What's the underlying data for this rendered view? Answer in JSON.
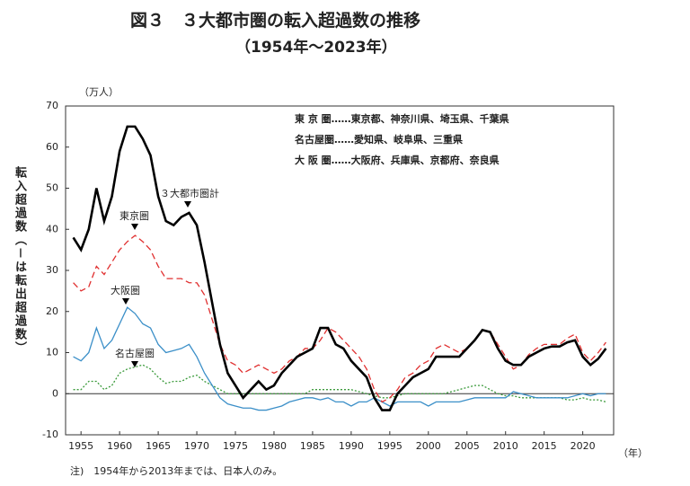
{
  "chart_data": {
    "type": "line",
    "title": "図３　３大都市圏の転入超過数の推移",
    "subtitle": "（1954年～2023年）",
    "y_unit": "（万人）",
    "y_label": "転入超過数（－は転出超過数）",
    "x_unit": "（年）",
    "note": "注)　1954年から2013年までは、日本人のみ。",
    "definitions": [
      "東 京 圏……東京都、神奈川県、埼玉県、千葉県",
      "名古屋圏……愛知県、岐阜県、三重県",
      "大 阪 圏……大阪府、兵庫県、京都府、奈良県"
    ],
    "x": [
      1954,
      1955,
      1956,
      1957,
      1958,
      1959,
      1960,
      1961,
      1962,
      1963,
      1964,
      1965,
      1966,
      1967,
      1968,
      1969,
      1970,
      1971,
      1972,
      1973,
      1974,
      1975,
      1976,
      1977,
      1978,
      1979,
      1980,
      1981,
      1982,
      1983,
      1984,
      1985,
      1986,
      1987,
      1988,
      1989,
      1990,
      1991,
      1992,
      1993,
      1994,
      1995,
      1996,
      1997,
      1998,
      1999,
      2000,
      2001,
      2002,
      2003,
      2004,
      2005,
      2006,
      2007,
      2008,
      2009,
      2010,
      2011,
      2012,
      2013,
      2014,
      2015,
      2016,
      2017,
      2018,
      2019,
      2020,
      2021,
      2022,
      2023
    ],
    "series": [
      {
        "name": "３大都市圏計",
        "color": "#000000",
        "dash": "solid",
        "width": 2.6,
        "values": [
          38,
          35,
          40,
          50,
          42,
          48,
          59,
          65,
          65,
          62,
          58,
          48,
          42,
          41,
          43,
          44,
          41,
          32,
          22,
          12,
          5,
          2,
          -1,
          1,
          3,
          1,
          2,
          5,
          7,
          9,
          10,
          11,
          16,
          16,
          12,
          11,
          8,
          6,
          4,
          -1,
          -4,
          -4,
          0,
          2,
          4,
          5,
          6,
          9,
          9,
          9,
          9,
          11,
          13,
          15.5,
          15,
          11,
          8,
          7,
          7,
          9,
          10,
          11,
          11.5,
          11.5,
          12.5,
          13,
          9,
          7,
          8.5,
          11
        ]
      },
      {
        "name": "東京圏",
        "color": "#e03030",
        "dash": "dashed",
        "width": 1.3,
        "values": [
          27,
          25,
          26,
          31,
          29,
          32,
          35,
          37,
          38.5,
          37,
          35,
          31,
          28,
          28,
          28,
          27,
          27,
          24,
          18,
          12,
          8,
          7,
          5,
          6,
          7,
          6,
          5,
          6,
          8,
          9,
          11,
          11,
          13,
          16,
          15,
          13,
          11,
          9,
          6,
          1,
          -2,
          -1,
          1,
          4,
          5,
          7,
          8,
          11,
          12,
          11,
          10,
          11,
          13,
          15.5,
          15,
          12,
          9,
          6,
          7,
          9.5,
          11,
          12,
          12,
          12,
          13.5,
          14.5,
          10,
          8,
          10,
          12.5
        ]
      },
      {
        "name": "大阪圏",
        "color": "#3b8fc8",
        "dash": "solid",
        "width": 1.3,
        "values": [
          9,
          8,
          10,
          16,
          11,
          13,
          17,
          21,
          19.5,
          17,
          16,
          12,
          10,
          10.5,
          11,
          12,
          9,
          5,
          2,
          -1,
          -2.5,
          -3,
          -3.5,
          -3.5,
          -4,
          -4,
          -3.5,
          -3,
          -2,
          -1.5,
          -1,
          -1,
          -1.5,
          -1,
          -2,
          -2,
          -3,
          -2,
          -2,
          -1,
          -2,
          -3,
          -2,
          -2,
          -2,
          -2,
          -3,
          -2,
          -2,
          -2,
          -2,
          -1.5,
          -1,
          -1,
          -1,
          -1,
          -1,
          0.5,
          0,
          -0.5,
          -1,
          -1,
          -1,
          -1,
          -1,
          -0.5,
          0,
          -0.5,
          0,
          0
        ]
      },
      {
        "name": "名古屋圏",
        "color": "#3a9a3a",
        "dash": "dotted",
        "width": 1.3,
        "values": [
          1,
          1,
          3,
          3,
          1,
          2,
          5,
          6,
          6.5,
          7,
          6,
          4,
          2.5,
          3,
          3,
          4,
          4.5,
          3,
          2,
          1,
          0,
          0,
          0,
          0,
          0,
          0,
          0,
          0,
          0,
          0,
          0,
          1,
          1,
          1,
          1,
          1,
          1,
          0.5,
          0,
          -0.5,
          -1,
          -1,
          -0.5,
          0,
          0,
          0,
          0,
          0,
          0,
          0.5,
          1,
          1.5,
          2,
          2,
          1,
          0,
          -0.5,
          -0.5,
          -1,
          -1,
          -1,
          -1,
          -1,
          -1,
          -1.5,
          -1.5,
          -1,
          -1.5,
          -1.5,
          -2
        ]
      }
    ],
    "xlim": [
      1953,
      2024
    ],
    "ylim": [
      -10,
      70
    ],
    "xticks": [
      1955,
      1960,
      1965,
      1970,
      1975,
      1980,
      1985,
      1990,
      1995,
      2000,
      2005,
      2010,
      2015,
      2020
    ],
    "yticks": [
      -10,
      0,
      10,
      20,
      30,
      40,
      50,
      60,
      70
    ],
    "zero_line": true
  }
}
